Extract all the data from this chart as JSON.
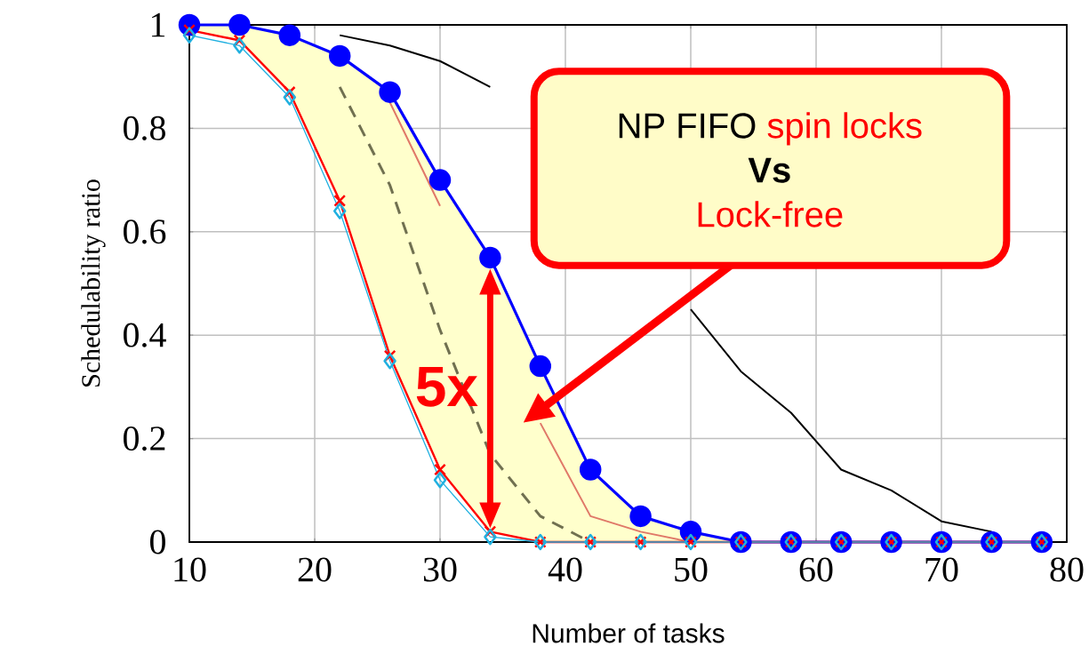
{
  "chart_data": {
    "type": "line",
    "xlabel": "Number of tasks",
    "ylabel": "Schedulability ratio",
    "x": [
      10,
      14,
      18,
      22,
      26,
      30,
      34,
      38,
      42,
      46,
      50,
      54,
      58,
      62,
      66,
      70,
      74,
      78
    ],
    "xlim": [
      10,
      80
    ],
    "xticks": [
      10,
      20,
      30,
      40,
      50,
      60,
      70,
      80
    ],
    "ylim": [
      0,
      1
    ],
    "yticks": [
      0,
      0.2,
      0.4,
      0.6,
      0.8,
      1
    ],
    "grid": true,
    "series": [
      {
        "color": "#0000ff",
        "marker": "circle",
        "line_style": "solid",
        "values": [
          1,
          1,
          0.98,
          0.94,
          0.87,
          0.7,
          0.55,
          0.34,
          0.14,
          0.05,
          0.02,
          0,
          0,
          0,
          0,
          0,
          0,
          0
        ]
      },
      {
        "color": "#e07868",
        "marker": "none",
        "line_style": "solid",
        "values": [
          null,
          null,
          null,
          null,
          0.85,
          0.65,
          null,
          0.23,
          0.05,
          0.02,
          0,
          null,
          null,
          null,
          null,
          null,
          null,
          null
        ]
      },
      {
        "color": "#707050",
        "marker": "none",
        "line_style": "dashed",
        "values": [
          null,
          null,
          null,
          0.88,
          0.69,
          0.41,
          0.17,
          0.05,
          0,
          null,
          null,
          null,
          null,
          null,
          null,
          null,
          null,
          null
        ],
        "lower": [
          0.99,
          0.97,
          0.87,
          0.66,
          0.36,
          0.14,
          0.02,
          0,
          0,
          0,
          0,
          0,
          0,
          0,
          0,
          0,
          0,
          0
        ],
        "upper": [
          1,
          1,
          0.98,
          0.94,
          0.87,
          0.7,
          0.55,
          0.34,
          0.14,
          0.05,
          0.02,
          0,
          0,
          0,
          0,
          0,
          0,
          0
        ]
      },
      {
        "color": "#ff0000",
        "marker": "cross",
        "line_style": "solid",
        "values": [
          0.99,
          0.97,
          0.87,
          0.66,
          0.36,
          0.14,
          0.02,
          0,
          0,
          0,
          0,
          0,
          0,
          0,
          0,
          0,
          0,
          0
        ]
      },
      {
        "color": "#20b0e0",
        "marker": "diamond",
        "line_style": "solid",
        "values": [
          0.98,
          0.96,
          0.86,
          0.64,
          0.35,
          0.12,
          0.01,
          0,
          0,
          0,
          0,
          0,
          0,
          0,
          0,
          0,
          0,
          0
        ]
      },
      {
        "color": "#000000",
        "marker": "none",
        "line_style": "solid",
        "values": [
          null,
          null,
          null,
          0.98,
          0.96,
          0.93,
          0.88,
          null,
          null,
          null,
          0.45,
          0.33,
          0.25,
          0.14,
          0.1,
          0.04,
          0.02,
          null
        ]
      }
    ],
    "annotations": [
      "5x",
      "NP FIFO",
      "spin locks",
      "**Vs**",
      "Lock-free"
    ]
  }
}
